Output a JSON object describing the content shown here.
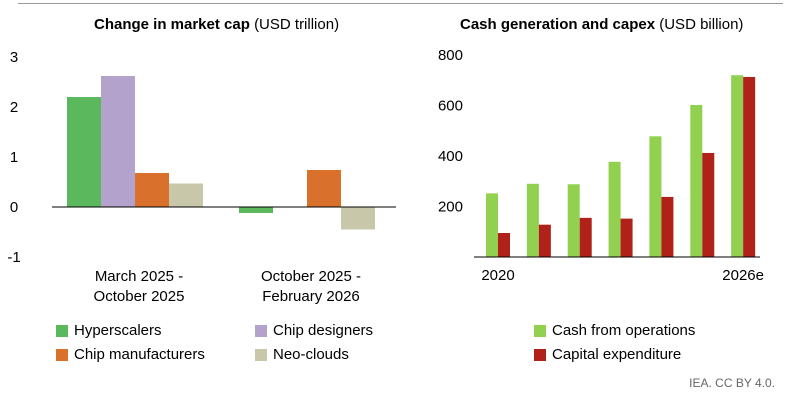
{
  "chart_data": [
    {
      "type": "bar",
      "title": "Change in market cap",
      "unit": "(USD trillion)",
      "categories": [
        [
          "March 2025 -",
          "October 2025"
        ],
        [
          "October 2025 -",
          "February 2026"
        ]
      ],
      "series": [
        {
          "name": "Hyperscalers",
          "color": "#5cb85c",
          "values": [
            2.2,
            -0.12
          ]
        },
        {
          "name": "Chip designers",
          "color": "#b3a3cc",
          "values": [
            2.62,
            0
          ]
        },
        {
          "name": "Chip manufacturers",
          "color": "#d9702b",
          "values": [
            0.68,
            0.74
          ]
        },
        {
          "name": "Neo-clouds",
          "color": "#c9c7aa",
          "values": [
            0.47,
            -0.45
          ]
        }
      ],
      "ylim": [
        -1,
        3
      ],
      "yticks": [
        -1,
        0,
        1,
        2,
        3
      ]
    },
    {
      "type": "bar",
      "title": "Cash generation and capex",
      "unit": "(USD billion)",
      "x": [
        "2020",
        "",
        "",
        "",
        "",
        "",
        "2026e"
      ],
      "series": [
        {
          "name": "Cash from operations",
          "color": "#92d050",
          "values": [
            252,
            290,
            288,
            377,
            478,
            602,
            720
          ]
        },
        {
          "name": "Capital expenditure",
          "color": "#b0211a",
          "values": [
            95,
            128,
            155,
            152,
            238,
            412,
            713
          ]
        }
      ],
      "ylim": [
        0,
        800
      ],
      "yticks": [
        200,
        400,
        600,
        800
      ]
    }
  ],
  "credit": "IEA. CC BY 4.0."
}
